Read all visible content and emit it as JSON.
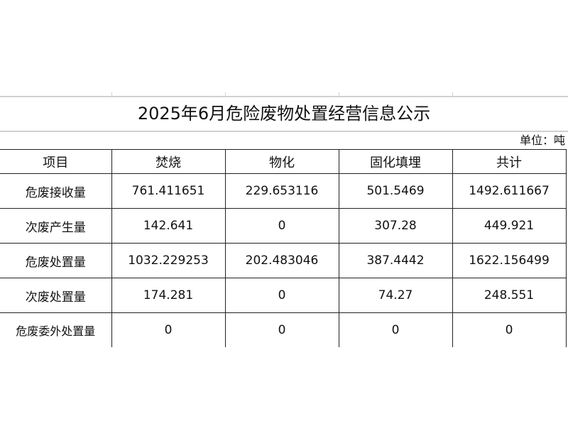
{
  "title": "2025年6月危险废物处置经营信息公示",
  "unit": "单位：吨",
  "columns": [
    "项目",
    "焚烧",
    "物化",
    "固化填埋",
    "共计"
  ],
  "rows": [
    [
      "危废接收量",
      "761.411651",
      "229.653116",
      "501.5469",
      "1492.611667"
    ],
    [
      "次废产生量",
      "142.641",
      "0",
      "307.28",
      "449.921"
    ],
    [
      "危废处置量",
      "1032.229253",
      "202.483046",
      "387.4442",
      "1622.156499"
    ],
    [
      "次废处置量",
      "174.281",
      "0",
      "74.27",
      "248.551"
    ],
    [
      "危废委外处置量",
      "0",
      "0",
      "0",
      "0"
    ]
  ]
}
